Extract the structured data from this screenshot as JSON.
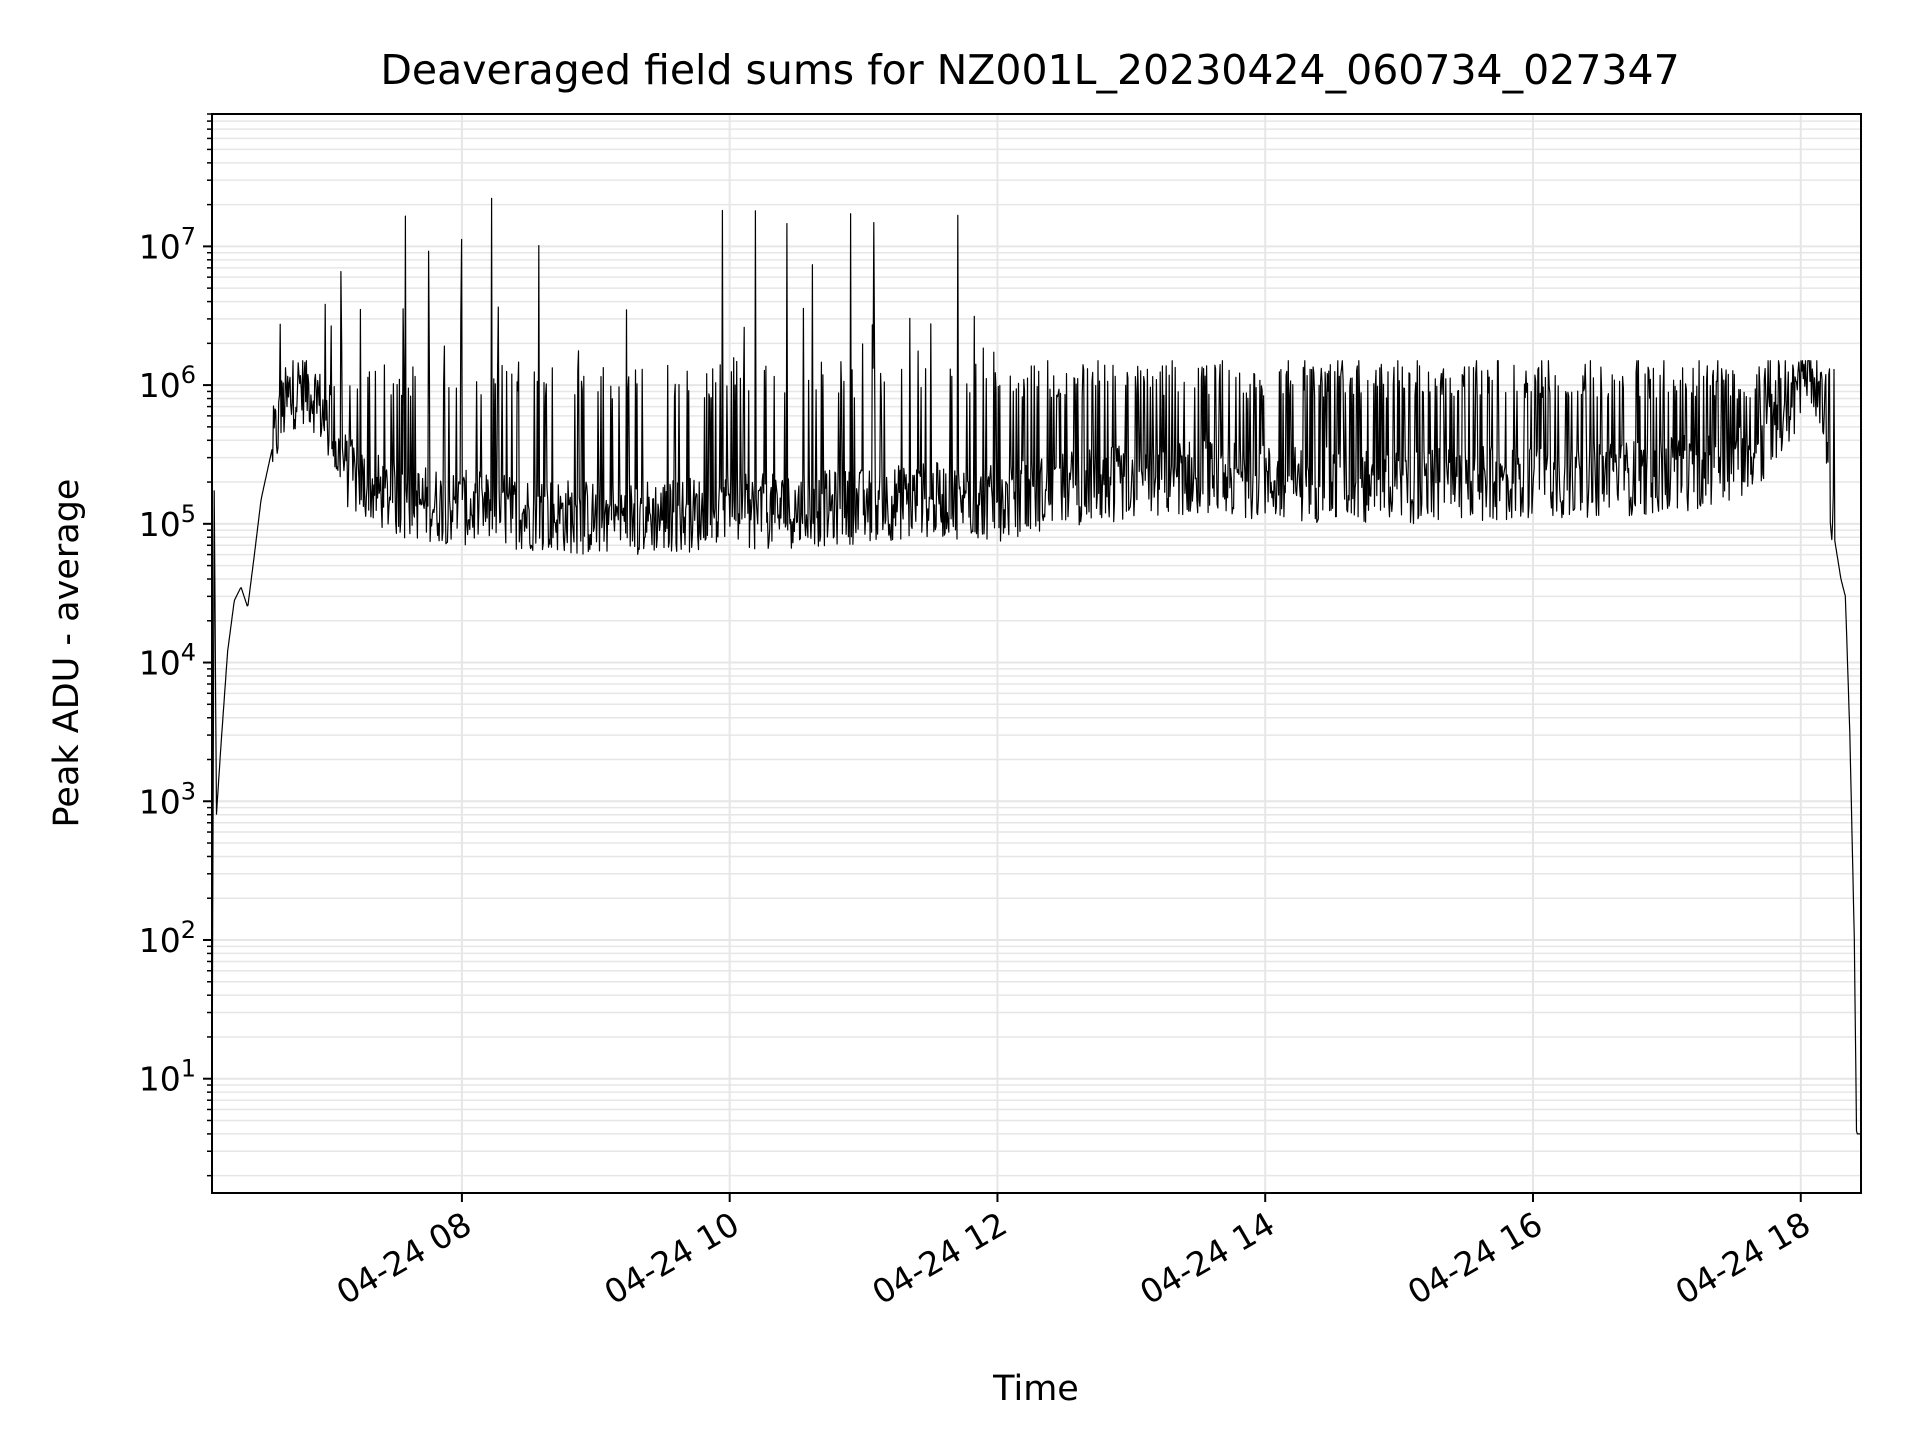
{
  "chart_data": {
    "type": "line",
    "title": "Deaveraged field sums for NZ001L_20230424_060734_027347",
    "xlabel": "Time",
    "ylabel": "Peak ADU - average",
    "yscale": "log",
    "xlim": [
      "04-24 06:08",
      "04-24 18:27"
    ],
    "ylim": [
      1.5,
      90000000
    ],
    "xticks": [
      {
        "value": "04-24 08:00",
        "label": "04-24 08"
      },
      {
        "value": "04-24 10:00",
        "label": "04-24 10"
      },
      {
        "value": "04-24 12:00",
        "label": "04-24 12"
      },
      {
        "value": "04-24 14:00",
        "label": "04-24 14"
      },
      {
        "value": "04-24 16:00",
        "label": "04-24 16"
      },
      {
        "value": "04-24 18:00",
        "label": "04-24 18"
      }
    ],
    "yticks": [
      {
        "exp": 1,
        "base": "10",
        "sup": "1"
      },
      {
        "exp": 2,
        "base": "10",
        "sup": "2"
      },
      {
        "exp": 3,
        "base": "10",
        "sup": "3"
      },
      {
        "exp": 4,
        "base": "10",
        "sup": "4"
      },
      {
        "exp": 5,
        "base": "10",
        "sup": "5"
      },
      {
        "exp": 6,
        "base": "10",
        "sup": "6"
      },
      {
        "exp": 7,
        "base": "10",
        "sup": "7"
      }
    ],
    "grid": true,
    "line_color": "#000000",
    "grid_color": "#e6e6e6",
    "series": [
      {
        "points": [
          [
            "06:08",
            4
          ],
          [
            "06:09",
            180000
          ],
          [
            "06:10",
            800
          ],
          [
            "06:12",
            2500
          ],
          [
            "06:15",
            12000
          ],
          [
            "06:18",
            28000
          ],
          [
            "06:21",
            35000
          ],
          [
            "06:24",
            25000
          ],
          [
            "06:27",
            60000
          ],
          [
            "06:30",
            150000
          ],
          [
            "06:35",
            350000
          ],
          [
            "06:40",
            700000
          ],
          [
            "06:45",
            900000
          ],
          [
            "06:50",
            1000000
          ],
          [
            "06:55",
            800000
          ],
          [
            "07:00",
            500000
          ],
          [
            "07:05",
            300000
          ],
          [
            "07:10",
            220000
          ],
          [
            "07:20",
            180000
          ],
          [
            "07:30",
            150000
          ],
          [
            "08:00",
            130000
          ],
          [
            "08:30",
            120000
          ],
          [
            "09:00",
            110000
          ],
          [
            "09:30",
            115000
          ],
          [
            "10:00",
            120000
          ],
          [
            "10:30",
            125000
          ],
          [
            "11:00",
            135000
          ],
          [
            "11:30",
            150000
          ],
          [
            "12:00",
            140000
          ],
          [
            "12:30",
            180000
          ],
          [
            "13:00",
            200000
          ],
          [
            "13:30",
            220000
          ],
          [
            "14:00",
            200000
          ],
          [
            "14:30",
            190000
          ],
          [
            "15:00",
            180000
          ],
          [
            "15:30",
            190000
          ],
          [
            "16:00",
            200000
          ],
          [
            "16:30",
            210000
          ],
          [
            "17:00",
            220000
          ],
          [
            "17:30",
            260000
          ],
          [
            "17:45",
            400000
          ],
          [
            "17:55",
            700000
          ],
          [
            "18:00",
            1000000
          ],
          [
            "18:05",
            1300000
          ],
          [
            "18:08",
            900000
          ],
          [
            "18:12",
            300000
          ],
          [
            "18:15",
            80000
          ],
          [
            "18:18",
            40000
          ],
          [
            "18:20",
            30000
          ],
          [
            "18:22",
            3000
          ],
          [
            "18:24",
            100
          ],
          [
            "18:25",
            4
          ],
          [
            "18:27",
            4
          ]
        ]
      }
    ]
  }
}
